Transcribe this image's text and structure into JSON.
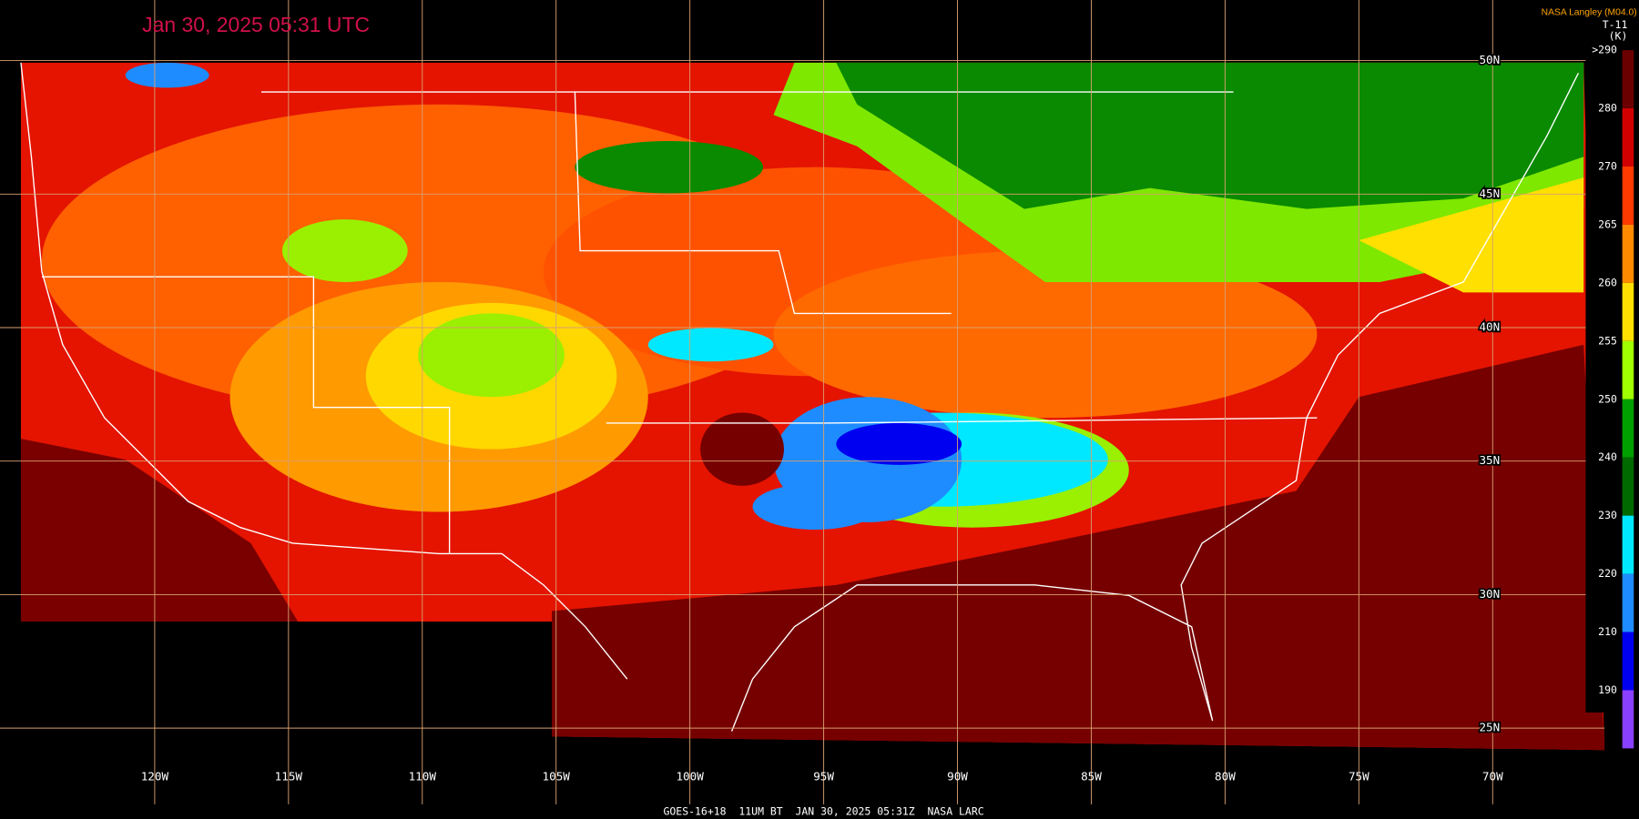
{
  "header": {
    "title": "Jan 30, 2025 05:31 UTC",
    "credit": "NASA Langley (M04.0)"
  },
  "legend": {
    "product": "T-11",
    "unit": "(K)",
    "labels": [
      ">290",
      "280",
      "270",
      "265",
      "260",
      "255",
      "250",
      "240",
      "230",
      "220",
      "210",
      "190"
    ],
    "colors": [
      "#6a0000",
      "#d00000",
      "#ff3a00",
      "#ff8a00",
      "#ffe000",
      "#a0ff00",
      "#00a000",
      "#006a00",
      "#00e8ff",
      "#1e8cff",
      "#0000f0",
      "#8a40ff"
    ]
  },
  "axes": {
    "longitudes": [
      "120W",
      "115W",
      "110W",
      "105W",
      "100W",
      "95W",
      "90W",
      "85W",
      "80W",
      "75W",
      "70W"
    ],
    "latitudes": [
      "50N",
      "45N",
      "40N",
      "35N",
      "30N",
      "25N"
    ]
  },
  "footer": "GOES-16+18  11UM BT  JAN 30, 2025 05:31Z  NASA LARC"
}
